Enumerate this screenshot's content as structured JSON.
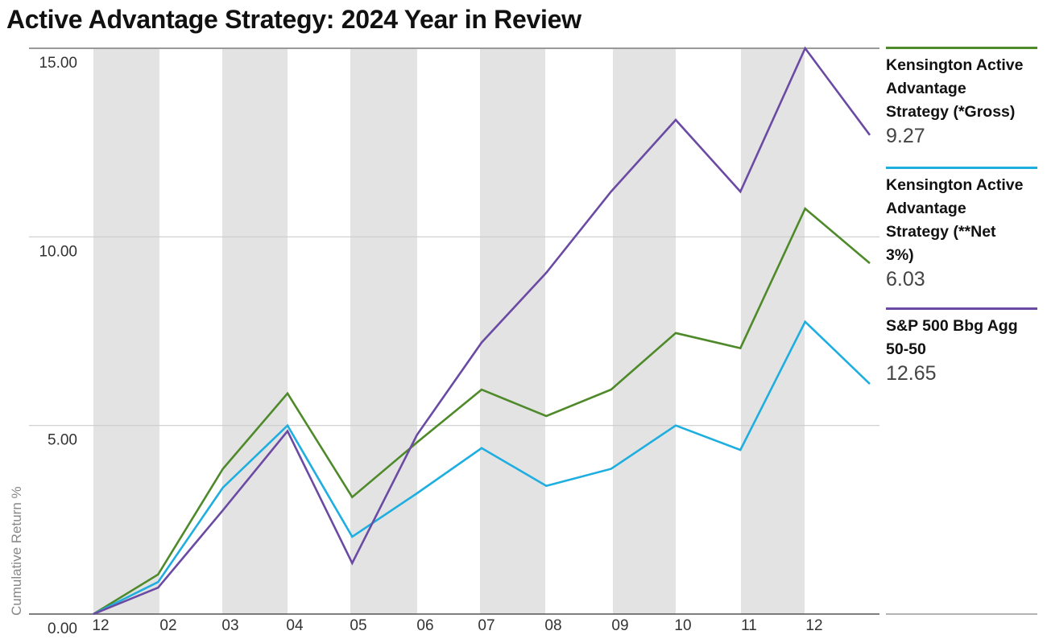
{
  "title": "Active Advantage Strategy: 2024 Year in Review",
  "chart_data": {
    "type": "line",
    "title": "Active Advantage Strategy: 2024 Year in Review",
    "xlabel": "",
    "ylabel": "Cumulative Return %",
    "x": [
      "12",
      "02",
      "03",
      "04",
      "05",
      "06",
      "07",
      "08",
      "09",
      "10",
      "11",
      "12"
    ],
    "ylim": [
      0,
      15
    ],
    "yticks": [
      0,
      5,
      10,
      15
    ],
    "ytick_labels": [
      "0.00",
      "5.00",
      "10.00",
      "15.00"
    ],
    "grid": true,
    "alternating_month_shading": true,
    "legend_position": "right",
    "series": [
      {
        "name": "Kensington Active Advantage Strategy (*Gross)",
        "legend_lines": [
          "Kensington Active",
          "Advantage",
          "Strategy (*Gross)"
        ],
        "end_value_label": "9.27",
        "color": "#4e8a2a",
        "points": [
          [
            0,
            0
          ],
          [
            1,
            1.05
          ],
          [
            2,
            3.85
          ],
          [
            3,
            5.85
          ],
          [
            4,
            3.1
          ],
          [
            5,
            4.55
          ],
          [
            6,
            5.95
          ],
          [
            7,
            5.25
          ],
          [
            8,
            5.95
          ],
          [
            9,
            7.45
          ],
          [
            10,
            7.05
          ],
          [
            11,
            10.75
          ],
          [
            12,
            9.3
          ]
        ]
      },
      {
        "name": "Kensington Active Advantage Strategy (**Net 3%)",
        "legend_lines": [
          "Kensington Active",
          "Advantage",
          "Strategy (**Net",
          "3%)"
        ],
        "end_value_label": "6.03",
        "color": "#1eaee0",
        "points": [
          [
            0,
            0
          ],
          [
            1,
            0.85
          ],
          [
            2,
            3.35
          ],
          [
            3,
            5.0
          ],
          [
            4,
            2.05
          ],
          [
            5,
            3.2
          ],
          [
            6,
            4.4
          ],
          [
            7,
            3.4
          ],
          [
            8,
            3.85
          ],
          [
            9,
            5.0
          ],
          [
            10,
            4.35
          ],
          [
            11,
            7.75
          ],
          [
            12,
            6.1
          ]
        ]
      },
      {
        "name": "S&P 500 Bbg Agg 50-50",
        "legend_lines": [
          "S&P 500 Bbg Agg",
          "50-50"
        ],
        "end_value_label": "12.65",
        "color": "#6b4aa3",
        "points": [
          [
            0,
            0
          ],
          [
            1,
            0.7
          ],
          [
            2,
            2.75
          ],
          [
            3,
            4.85
          ],
          [
            4,
            1.35
          ],
          [
            5,
            4.75
          ],
          [
            6,
            7.2
          ],
          [
            7,
            9.05
          ],
          [
            8,
            11.2
          ],
          [
            9,
            13.1
          ],
          [
            10,
            11.2
          ],
          [
            11,
            15.0
          ],
          [
            12,
            12.7
          ]
        ]
      }
    ]
  },
  "colors": {
    "shade": "#e3e3e3",
    "gridline": "#cccccc",
    "axis": "#555555"
  }
}
